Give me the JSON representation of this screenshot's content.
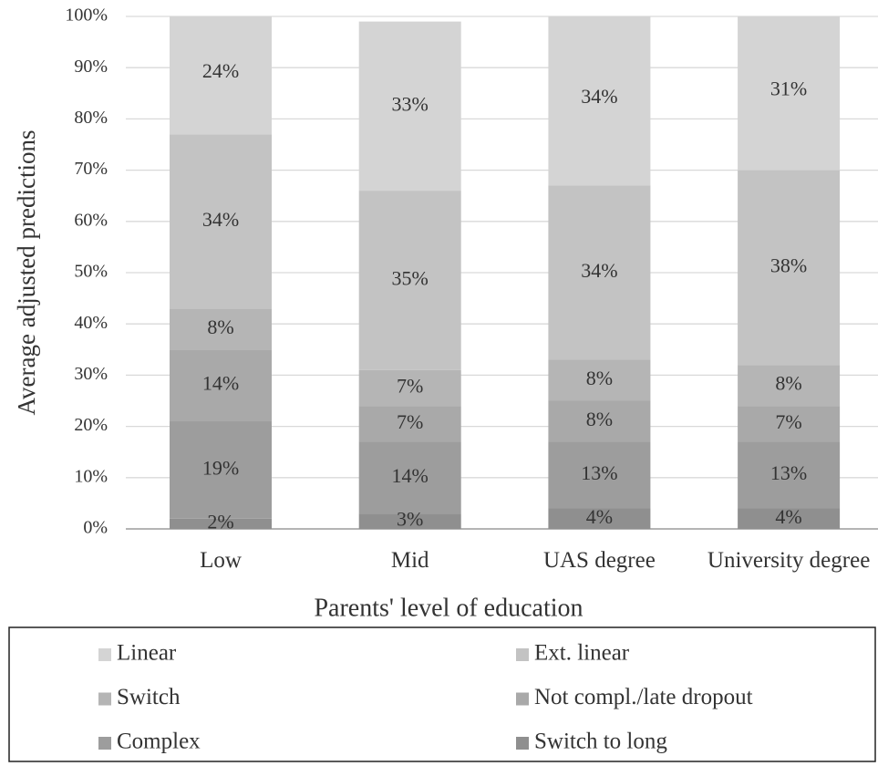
{
  "chart_data": {
    "type": "stacked_bar",
    "y_axis_label": "Average adjusted predictions",
    "x_axis_label": "Parents' level of education",
    "categories": [
      "Low",
      "Mid",
      "UAS degree",
      "University degree"
    ],
    "series": [
      {
        "name": "Linear",
        "color": "#d4d4d4",
        "values": [
          24,
          33,
          34,
          31
        ],
        "value_labels": [
          "24%",
          "33%",
          "34%",
          "31%"
        ]
      },
      {
        "name": "Ext. linear",
        "color": "#c3c3c3",
        "values": [
          34,
          35,
          34,
          38
        ],
        "value_labels": [
          "34%",
          "35%",
          "34%",
          "38%"
        ]
      },
      {
        "name": "Switch",
        "color": "#b5b5b5",
        "values": [
          8,
          7,
          8,
          8
        ],
        "value_labels": [
          "8%",
          "7%",
          "8%",
          "8%"
        ]
      },
      {
        "name": "Not compl./late dropout",
        "color": "#a9a9a9",
        "values": [
          14,
          7,
          8,
          7
        ],
        "value_labels": [
          "14%",
          "7%",
          "8%",
          "7%"
        ]
      },
      {
        "name": "Complex",
        "color": "#9d9d9d",
        "values": [
          19,
          14,
          13,
          13
        ],
        "value_labels": [
          "19%",
          "14%",
          "13%",
          "13%"
        ]
      },
      {
        "name": "Switch to long",
        "color": "#8f8f8f",
        "values": [
          2,
          3,
          4,
          4
        ],
        "value_labels": [
          "2%",
          "3%",
          "4%",
          "4%"
        ]
      }
    ],
    "ylim": [
      0,
      100
    ],
    "yticks": [
      {
        "value": 0,
        "label": "0%"
      },
      {
        "value": 10,
        "label": "10%"
      },
      {
        "value": 20,
        "label": "20%"
      },
      {
        "value": 30,
        "label": "30%"
      },
      {
        "value": 40,
        "label": "40%"
      },
      {
        "value": 50,
        "label": "50%"
      },
      {
        "value": 60,
        "label": "60%"
      },
      {
        "value": 70,
        "label": "70%"
      },
      {
        "value": 80,
        "label": "80%"
      },
      {
        "value": 90,
        "label": "90%"
      },
      {
        "value": 100,
        "label": "100%"
      }
    ],
    "grid": true
  }
}
